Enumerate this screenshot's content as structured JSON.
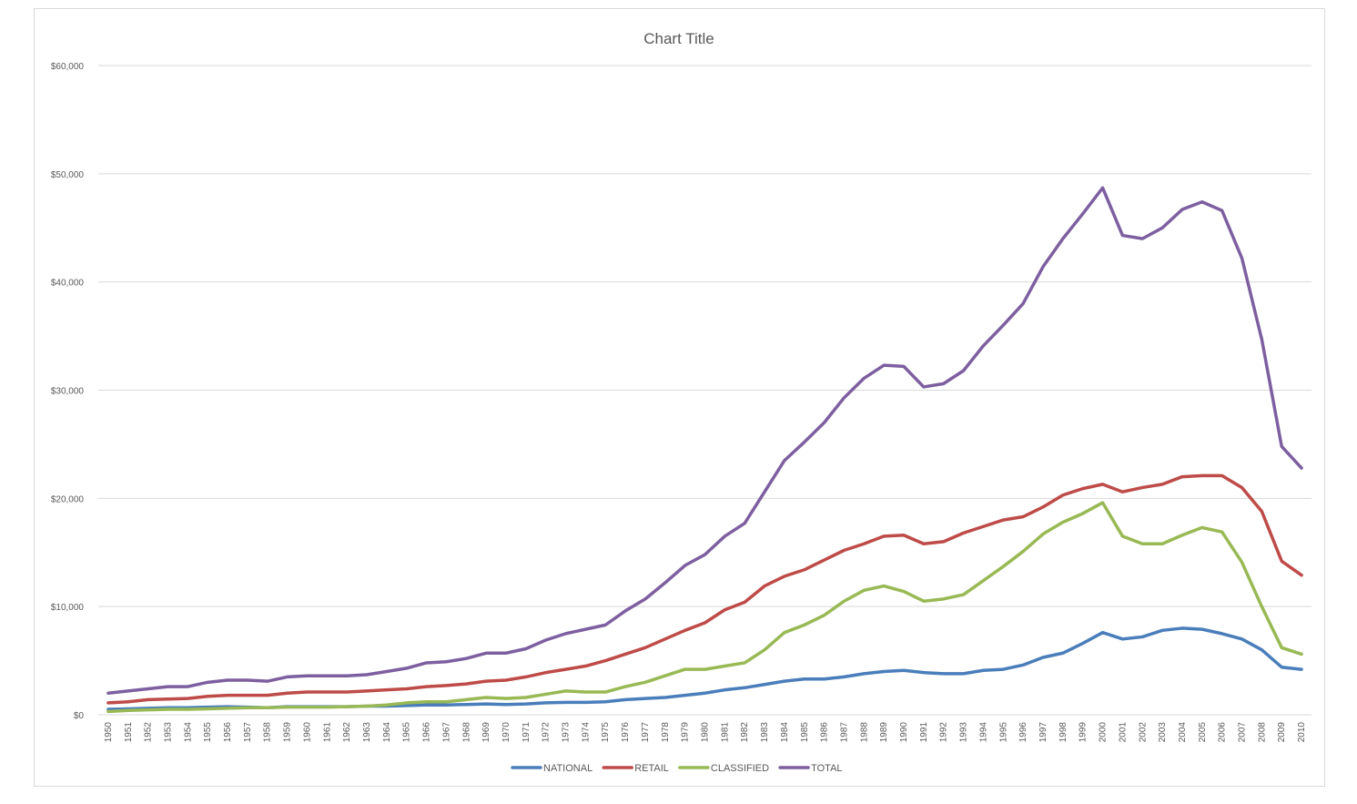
{
  "chart_data": {
    "type": "line",
    "title": "Chart Title",
    "xlabel": "",
    "ylabel": "",
    "ylim": [
      0,
      60000
    ],
    "ytick_values": [
      0,
      10000,
      20000,
      30000,
      40000,
      50000,
      60000
    ],
    "ytick_labels": [
      "$0",
      "$10,000",
      "$20,000",
      "$30,000",
      "$40,000",
      "$50,000",
      "$60,000"
    ],
    "grid": true,
    "legend_position": "bottom",
    "categories": [
      "1950",
      "1951",
      "1952",
      "1953",
      "1954",
      "1955",
      "1956",
      "1957",
      "1958",
      "1959",
      "1960",
      "1961",
      "1962",
      "1963",
      "1964",
      "1965",
      "1966",
      "1967",
      "1968",
      "1969",
      "1970",
      "1971",
      "1972",
      "1973",
      "1974",
      "1975",
      "1976",
      "1977",
      "1978",
      "1979",
      "1980",
      "1981",
      "1982",
      "1983",
      "1984",
      "1985",
      "1986",
      "1987",
      "1988",
      "1989",
      "1990",
      "1991",
      "1992",
      "1993",
      "1994",
      "1995",
      "1996",
      "1997",
      "1998",
      "1999",
      "2000",
      "2001",
      "2002",
      "2003",
      "2004",
      "2005",
      "2006",
      "2007",
      "2008",
      "2009",
      "2010"
    ],
    "series": [
      {
        "name": "NATIONAL",
        "color": "#4a7ebb",
        "values": [
          500,
          550,
          600,
          650,
          650,
          700,
          750,
          700,
          650,
          750,
          750,
          750,
          750,
          800,
          800,
          850,
          900,
          900,
          950,
          1000,
          950,
          1000,
          1100,
          1150,
          1150,
          1200,
          1400,
          1500,
          1600,
          1800,
          2000,
          2300,
          2500,
          2800,
          3100,
          3300,
          3300,
          3500,
          3800,
          4000,
          4100,
          3900,
          3800,
          3800,
          4100,
          4200,
          4600,
          5300,
          5700,
          6600,
          7600,
          7000,
          7200,
          7800,
          8000,
          7900,
          7500,
          7000,
          6000,
          4400,
          4200
        ]
      },
      {
        "name": "RETAIL",
        "color": "#be4b48",
        "values": [
          1100,
          1200,
          1400,
          1450,
          1500,
          1700,
          1800,
          1800,
          1800,
          2000,
          2100,
          2100,
          2100,
          2200,
          2300,
          2400,
          2600,
          2700,
          2850,
          3100,
          3200,
          3500,
          3900,
          4200,
          4500,
          5000,
          5600,
          6200,
          7000,
          7800,
          8500,
          9700,
          10400,
          11900,
          12800,
          13400,
          14300,
          15200,
          15800,
          16500,
          16600,
          15800,
          16000,
          16800,
          17400,
          18000,
          18300,
          19200,
          20300,
          20900,
          21300,
          20600,
          21000,
          21300,
          22000,
          22100,
          22100,
          21000,
          18800,
          14200,
          12900
        ]
      },
      {
        "name": "CLASSIFIED",
        "color": "#98b954",
        "values": [
          300,
          400,
          450,
          500,
          500,
          550,
          600,
          650,
          650,
          700,
          700,
          700,
          750,
          800,
          900,
          1100,
          1200,
          1200,
          1400,
          1600,
          1500,
          1600,
          1900,
          2200,
          2100,
          2100,
          2600,
          3000,
          3600,
          4200,
          4200,
          4500,
          4800,
          6000,
          7600,
          8300,
          9200,
          10500,
          11500,
          11900,
          11400,
          10500,
          10700,
          11100,
          12400,
          13700,
          15100,
          16700,
          17800,
          18600,
          19600,
          16500,
          15800,
          15800,
          16600,
          17300,
          16900,
          14100,
          10000,
          6200,
          5600
        ]
      },
      {
        "name": "TOTAL",
        "color": "#7d5fa0",
        "values": [
          2000,
          2200,
          2400,
          2600,
          2600,
          3000,
          3200,
          3200,
          3100,
          3500,
          3600,
          3600,
          3600,
          3700,
          4000,
          4300,
          4800,
          4900,
          5200,
          5700,
          5700,
          6100,
          6900,
          7500,
          7900,
          8300,
          9600,
          10700,
          12200,
          13800,
          14800,
          16500,
          17700,
          20600,
          23500,
          25200,
          27000,
          29300,
          31100,
          32300,
          32200,
          30300,
          30600,
          31800,
          34100,
          36000,
          38000,
          41400,
          44000,
          46300,
          48700,
          44300,
          44000,
          45000,
          46700,
          47400,
          46600,
          42200,
          34700,
          24800,
          22800
        ]
      }
    ]
  }
}
